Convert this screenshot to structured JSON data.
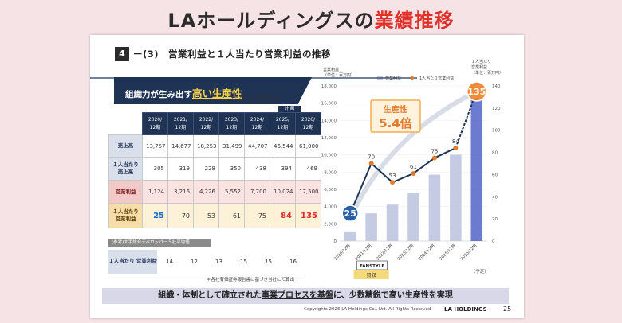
{
  "headline": {
    "part1": "LAホールディングスの",
    "part2": "業績推移"
  },
  "section": {
    "number": "4",
    "title": "ー(3)　営業利益と１人当たり営業利益の推移"
  },
  "banner": {
    "prefix": "組織力が生み出す",
    "highlight": "高い生産性",
    "unit_note": "（一人当たり営業利益）"
  },
  "plan_tag": "計 画",
  "table": {
    "columns": [
      "2020/ 12期",
      "2021/ 12期",
      "2022/ 12期",
      "2023/ 12期",
      "2024/ 12期",
      "2025/ 12期",
      "2026/ 12期"
    ],
    "rows": {
      "sales": {
        "label": "売上高",
        "values": [
          "13,757",
          "14,677",
          "18,253",
          "31,499",
          "44,707",
          "46,544",
          "61,000"
        ]
      },
      "sales_per_head": {
        "label": "１人当たり 売上高",
        "values": [
          "305",
          "319",
          "228",
          "350",
          "438",
          "394",
          "469"
        ]
      },
      "op_profit": {
        "label": "営業利益",
        "values": [
          "1,124",
          "3,216",
          "4,226",
          "5,552",
          "7,700",
          "10,024",
          "17,500"
        ]
      },
      "op_per_head": {
        "label": "１人当たり 営業利益",
        "values": [
          "25",
          "70",
          "53",
          "61",
          "75",
          "84",
          "135"
        ]
      }
    }
  },
  "reference": {
    "label": "(参考)大手総合デベロッパー５社平均値",
    "row_label": "１人当たり 営業利益",
    "values": [
      "14",
      "12",
      "13",
      "15",
      "15",
      "16"
    ]
  },
  "footnote": "＊各社有価証券報告書に基づき当社にて算出",
  "bottom_message": {
    "prefix": "組織・体制として確立された",
    "highlight": "事業プロセスを基盤",
    "suffix": "に、少数精鋭で高い生産性を実現"
  },
  "copyright": "Copyrights 2026 LA Holdings Co., Ltd.  All Rights Reserved",
  "brand": "LA HOLDINGS",
  "page_number": "25",
  "chart_data": {
    "type": "bar+line",
    "left_axis_title": "営業利益 （単位：百万円）",
    "right_axis_title": "１人当たり 営業利益 （単位：百万円）",
    "legend": [
      "営業利益",
      "1人当たり営業利益"
    ],
    "categories": [
      "2020/12",
      "2021/12",
      "2022/12",
      "2023/12",
      "2024/12",
      "2025/12",
      "2026/12"
    ],
    "category_labels": [
      "2020/12期",
      "2021/12期",
      "2022/12期",
      "2023/12期",
      "2024/12期",
      "2025/12期",
      "2026/12期"
    ],
    "forecast_note": "（予定）",
    "series": [
      {
        "name": "営業利益",
        "axis": "left",
        "values": [
          1124,
          3216,
          4226,
          5552,
          7700,
          10024,
          17500
        ]
      },
      {
        "name": "1人当たり営業利益",
        "axis": "right",
        "values": [
          25,
          70,
          53,
          61,
          75,
          84,
          135
        ]
      }
    ],
    "left_ylim": [
      0,
      18000
    ],
    "left_ticks": [
      "0",
      "2,000",
      "4,000",
      "6,000",
      "8,000",
      "10,000",
      "12,000",
      "14,000",
      "16,000",
      "18,000"
    ],
    "right_ylim": [
      0,
      140
    ],
    "right_ticks": [
      "0",
      "20",
      "40",
      "60",
      "80",
      "100",
      "120",
      "140"
    ],
    "annotation": {
      "label": "生産性",
      "value": "5.4倍"
    },
    "badge": {
      "title": "FANSTYLE",
      "subtitle": "買収"
    },
    "colors": {
      "bar": "#c5cbe3",
      "bar_forecast": "#3b4fbf",
      "line": "#1f3355",
      "marker": "#e37b2c",
      "highlight": "#f6ac56",
      "start_circle": "#2c5fa6",
      "end_circle": "#f18b3a"
    }
  }
}
